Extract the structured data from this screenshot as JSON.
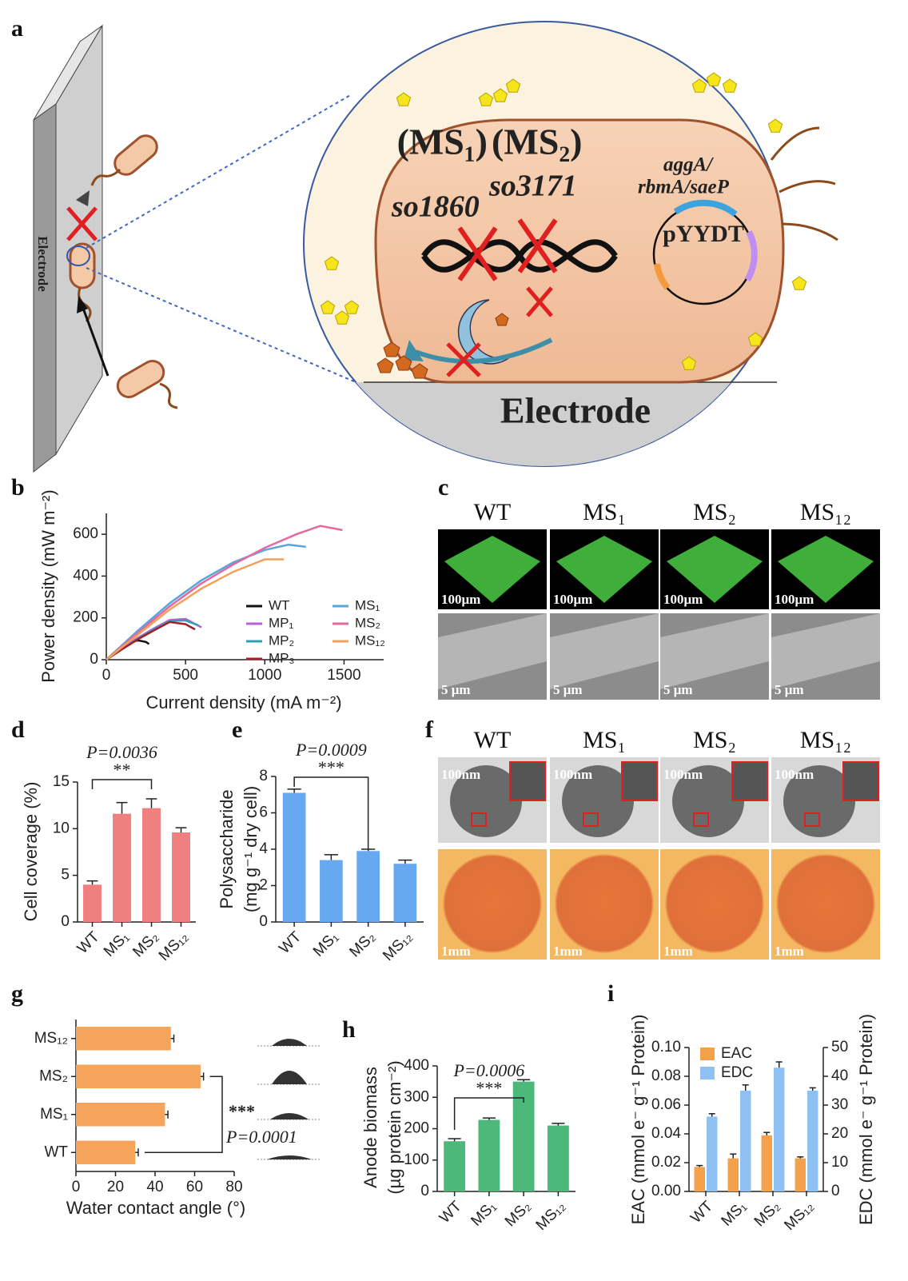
{
  "panel_labels": [
    "a",
    "b",
    "c",
    "d",
    "e",
    "f",
    "g",
    "h",
    "i"
  ],
  "diagram": {
    "strains": [
      "(MS₁)",
      "(MS₂)"
    ],
    "genes": [
      "so1860",
      "so3171"
    ],
    "plasmid_genes": [
      "aggA/",
      "rbmA/saeP"
    ],
    "plasmid": "pYYDT",
    "electrode": "Electrode",
    "plate_label": "Electrode"
  },
  "micrographs_c": {
    "strains": [
      "WT",
      "MS₁",
      "MS₂",
      "MS₁₂"
    ],
    "scale_top": "100μm",
    "scale_bottom": "5 μm"
  },
  "micrographs_f": {
    "strains": [
      "WT",
      "MS₁",
      "MS₂",
      "MS₁₂"
    ],
    "scale_top": "100nm",
    "scale_bottom": "1mm"
  },
  "chart_data": [
    {
      "type": "line",
      "xlabel": "Current density (mA m⁻²)",
      "ylabel": "Power density (mW m⁻²)",
      "xlim": [
        0,
        1750
      ],
      "xticks": [
        0,
        500,
        1000,
        1500
      ],
      "ylim": [
        0,
        700
      ],
      "yticks": [
        0,
        200,
        400,
        600
      ],
      "legend": "lower right",
      "series": [
        {
          "name": "WT",
          "color": "#111111",
          "x": [
            0,
            50,
            100,
            150,
            200,
            250,
            270
          ],
          "values": [
            0,
            35,
            65,
            85,
            92,
            85,
            75
          ]
        },
        {
          "name": "MP₁",
          "color": "#b65fd6",
          "x": [
            0,
            100,
            200,
            300,
            400,
            500,
            600
          ],
          "values": [
            0,
            55,
            105,
            150,
            190,
            195,
            155
          ]
        },
        {
          "name": "MP₂",
          "color": "#2f9fb5",
          "x": [
            0,
            100,
            200,
            300,
            400,
            500,
            580
          ],
          "values": [
            0,
            52,
            100,
            145,
            185,
            188,
            165
          ]
        },
        {
          "name": "MP₃",
          "color": "#a31f2a",
          "x": [
            0,
            100,
            200,
            300,
            400,
            500,
            560
          ],
          "values": [
            0,
            50,
            98,
            140,
            180,
            170,
            145
          ]
        },
        {
          "name": "MS₁",
          "color": "#5aa6dc",
          "x": [
            0,
            200,
            400,
            600,
            800,
            1000,
            1150,
            1260
          ],
          "values": [
            0,
            140,
            270,
            380,
            465,
            525,
            550,
            540
          ]
        },
        {
          "name": "MS₂",
          "color": "#e26aa0",
          "x": [
            0,
            200,
            400,
            600,
            800,
            1000,
            1200,
            1350,
            1490
          ],
          "values": [
            0,
            130,
            255,
            365,
            455,
            535,
            600,
            640,
            620
          ]
        },
        {
          "name": "MS₁₂",
          "color": "#f3a15a",
          "x": [
            0,
            200,
            400,
            600,
            800,
            1000,
            1120
          ],
          "values": [
            0,
            120,
            240,
            340,
            420,
            480,
            480
          ]
        }
      ]
    },
    {
      "type": "bar",
      "ylabel": "Cell coverage (%)",
      "categories": [
        "WT",
        "MS₁",
        "MS₂",
        "MS₁₂"
      ],
      "values": [
        4.0,
        11.6,
        12.2,
        9.6
      ],
      "errors": [
        0.4,
        1.2,
        1.0,
        0.5
      ],
      "color": "#f08080",
      "ylim": [
        0,
        15
      ],
      "yticks": [
        0,
        5,
        10,
        15
      ],
      "annotations": [
        "P=0.0036",
        "**"
      ]
    },
    {
      "type": "bar",
      "ylabel": [
        "Polysaccharide",
        "(mg g⁻¹ dry cell)"
      ],
      "categories": [
        "WT",
        "MS₁",
        "MS₂",
        "MS₁₂"
      ],
      "values": [
        7.1,
        3.4,
        3.9,
        3.2
      ],
      "errors": [
        0.2,
        0.3,
        0.1,
        0.2
      ],
      "color": "#66a9f0",
      "ylim": [
        0,
        8
      ],
      "yticks": [
        0,
        2,
        4,
        6,
        8
      ],
      "annotations": [
        "P=0.0009",
        "***"
      ]
    },
    {
      "type": "bar",
      "orientation": "horizontal",
      "xlabel": "Water contact angle (°)",
      "categories": [
        "WT",
        "MS₁",
        "MS₂",
        "MS₁₂"
      ],
      "values": [
        30,
        45,
        63,
        48
      ],
      "errors": [
        1.5,
        1.5,
        1.5,
        1.5
      ],
      "color": "#f5a45a",
      "xlim": [
        0,
        80
      ],
      "xticks": [
        0,
        20,
        40,
        60,
        80
      ],
      "annotations": [
        "***",
        "P=0.0001"
      ]
    },
    {
      "type": "bar",
      "ylabel": [
        "Anode biomass",
        "(µg protein cm⁻²)"
      ],
      "categories": [
        "WT",
        "MS₁",
        "MS₂",
        "MS₁₂"
      ],
      "values": [
        160,
        228,
        350,
        210
      ],
      "errors": [
        8,
        6,
        6,
        7
      ],
      "color": "#4cb87a",
      "ylim": [
        0,
        400
      ],
      "yticks": [
        0,
        100,
        200,
        300,
        400
      ],
      "annotations": [
        "P=0.0006",
        "***"
      ]
    },
    {
      "type": "bar",
      "categories": [
        "WT",
        "MS₁",
        "MS₂",
        "MS₁₂"
      ],
      "legend": "upper left",
      "ylabel": "EAC (mmol e⁻ g⁻¹ Protein)",
      "y2label": "EDC (mmol e⁻ g⁻¹ Protein)",
      "ylim": [
        0,
        0.1
      ],
      "yticks": [
        {
          "value": 0,
          "label": "0.00"
        },
        {
          "value": 0.02,
          "label": "0.02"
        },
        {
          "value": 0.04,
          "label": "0.04"
        },
        {
          "value": 0.06,
          "label": "0.06"
        },
        {
          "value": 0.08,
          "label": "0.08"
        },
        {
          "value": 0.1,
          "label": "0.10"
        }
      ],
      "y2lim": [
        0,
        50
      ],
      "y2ticks": [
        0,
        10,
        20,
        30,
        40,
        50
      ],
      "series": [
        {
          "name": "EAC",
          "color": "#f5a04a",
          "values": [
            0.017,
            0.023,
            0.039,
            0.023
          ],
          "errors": [
            0.001,
            0.003,
            0.002,
            0.001
          ]
        },
        {
          "name": "EDC",
          "color": "#8ec0f2",
          "axis": "y2",
          "values": [
            26,
            35,
            43,
            35
          ],
          "errors": [
            1,
            2,
            2,
            1
          ]
        }
      ]
    }
  ]
}
